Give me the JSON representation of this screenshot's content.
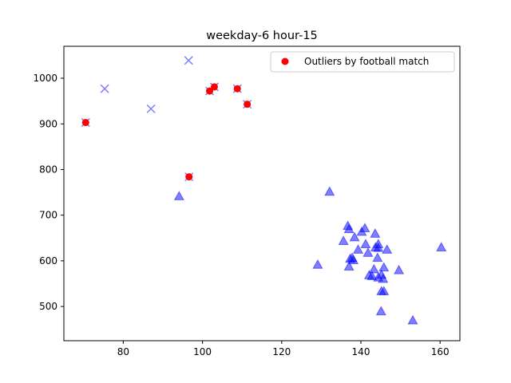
{
  "chart_data": {
    "type": "scatter",
    "title": "weekday-6 hour-15",
    "xlabel": "",
    "ylabel": "",
    "xlim": [
      65,
      165
    ],
    "ylim": [
      425,
      1070
    ],
    "xticks": [
      80,
      100,
      120,
      140,
      160
    ],
    "yticks": [
      500,
      600,
      700,
      800,
      900,
      1000
    ],
    "grid": false,
    "legend_position": "top-right",
    "series": [
      {
        "marker": "triangle",
        "color": "#0000ff",
        "points": [
          [
            94.1,
            741
          ],
          [
            132.1,
            751
          ],
          [
            129.1,
            591
          ],
          [
            136.7,
            676
          ],
          [
            137.0,
            669
          ],
          [
            135.6,
            643
          ],
          [
            138.4,
            651
          ],
          [
            140.2,
            663
          ],
          [
            141.0,
            671
          ],
          [
            143.6,
            659
          ],
          [
            144.4,
            636
          ],
          [
            139.3,
            624
          ],
          [
            141.2,
            636
          ],
          [
            141.8,
            617
          ],
          [
            143.7,
            629
          ],
          [
            144.4,
            628
          ],
          [
            146.6,
            624
          ],
          [
            144.2,
            606
          ],
          [
            137.3,
            604
          ],
          [
            137.8,
            606
          ],
          [
            138.1,
            601
          ],
          [
            137.0,
            587
          ],
          [
            143.3,
            581
          ],
          [
            142.1,
            568
          ],
          [
            142.8,
            566
          ],
          [
            145.8,
            585
          ],
          [
            145.2,
            569
          ],
          [
            144.4,
            563
          ],
          [
            145.6,
            560
          ],
          [
            149.6,
            579
          ],
          [
            145.2,
            533
          ],
          [
            145.8,
            533
          ],
          [
            145.1,
            489
          ],
          [
            153.1,
            469
          ],
          [
            160.3,
            629
          ]
        ]
      },
      {
        "marker": "x",
        "color": "#0000ff",
        "points": [
          [
            75.3,
            977
          ],
          [
            87.0,
            933
          ],
          [
            96.5,
            1039
          ],
          [
            70.5,
            903
          ],
          [
            96.6,
            784
          ],
          [
            101.8,
            972
          ],
          [
            103.0,
            981
          ],
          [
            108.8,
            977
          ],
          [
            111.3,
            943
          ]
        ]
      },
      {
        "name": "Outliers by football match",
        "marker": "circle",
        "color": "#ff0000",
        "points": [
          [
            70.5,
            903
          ],
          [
            96.6,
            784
          ],
          [
            101.8,
            972
          ],
          [
            103.0,
            981
          ],
          [
            108.8,
            977
          ],
          [
            111.3,
            943
          ]
        ]
      }
    ]
  }
}
